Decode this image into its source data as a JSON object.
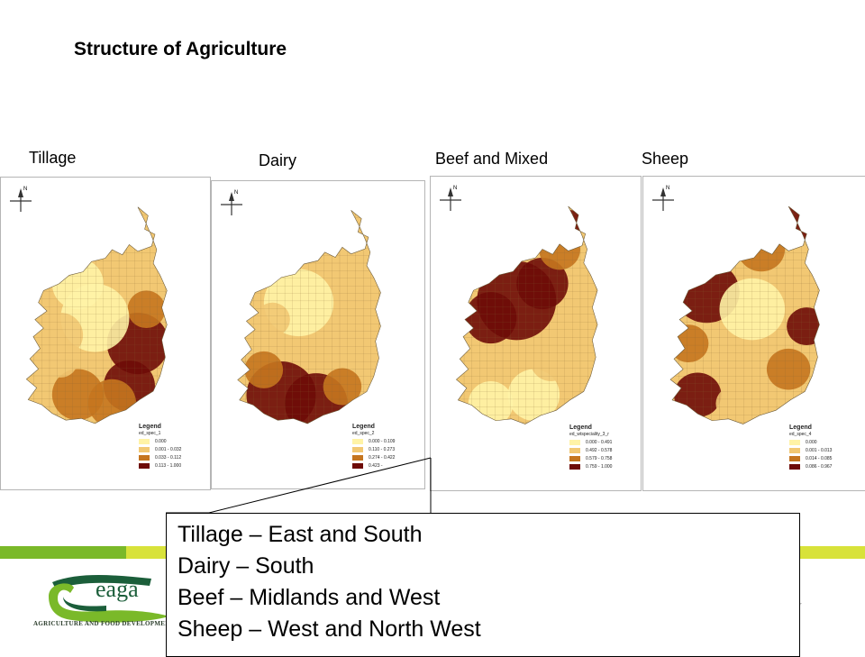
{
  "slide": {
    "title": "Structure of Agriculture"
  },
  "maps": [
    {
      "label": "Tillage",
      "legend_title": "Legend",
      "legend_field": "ed_spec_1",
      "classes": [
        {
          "range": "0.000",
          "color": "#fff3a6"
        },
        {
          "range": "0.001 - 0.032",
          "color": "#f2c873"
        },
        {
          "range": "0.033 - 0.112",
          "color": "#c5751f"
        },
        {
          "range": "0.113 - 1.000",
          "color": "#6e0b08"
        }
      ]
    },
    {
      "label": "Dairy",
      "legend_title": "Legend",
      "legend_field": "ed_spec_2",
      "classes": [
        {
          "range": "0.000 - 0.109",
          "color": "#fff3a6"
        },
        {
          "range": "0.110 - 0.273",
          "color": "#f2c873"
        },
        {
          "range": "0.274 - 0.422",
          "color": "#c5751f"
        },
        {
          "range": "0.423 -",
          "color": "#6e0b08"
        }
      ]
    },
    {
      "label": "Beef and Mixed",
      "legend_title": "Legend",
      "legend_field": "ed_wtspeciality_3_r",
      "classes": [
        {
          "range": "0.000 - 0.491",
          "color": "#fff3a6"
        },
        {
          "range": "0.492 - 0.578",
          "color": "#f2c873"
        },
        {
          "range": "0.579 - 0.758",
          "color": "#c5751f"
        },
        {
          "range": "0.759 - 1.000",
          "color": "#6e0b08"
        }
      ]
    },
    {
      "label": "Sheep",
      "legend_title": "Legend",
      "legend_field": "ed_spec_4",
      "classes": [
        {
          "range": "0.000",
          "color": "#fff3a6"
        },
        {
          "range": "0.001 - 0.013",
          "color": "#f2c873"
        },
        {
          "range": "0.014 - 0.085",
          "color": "#c5751f"
        },
        {
          "range": "0.086 - 0.967",
          "color": "#6e0b08"
        }
      ]
    }
  ],
  "north_arrow": "N",
  "callout": {
    "lines": [
      "Tillage – East and South",
      "Dairy – South",
      "Beef – Midlands and West",
      "Sheep – West and North West"
    ]
  },
  "footer": {
    "logo_text": "eaga",
    "logo_subtitle": "AGRICULTURE AND FOOD DEVELOPMENT A",
    "trailing_text": "y",
    "bar_colors": [
      "#7ab929",
      "#d8e23a"
    ]
  }
}
